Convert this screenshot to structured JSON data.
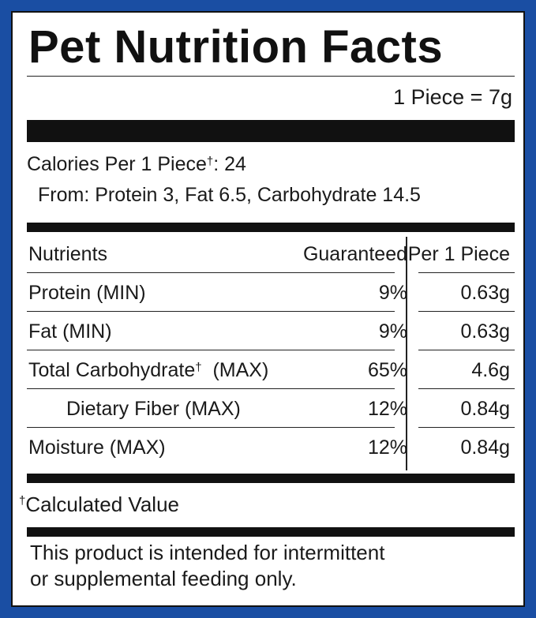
{
  "label": {
    "title": "Pet Nutrition Facts",
    "serving": "1 Piece = 7g",
    "calories_line": "Calories Per 1 Piece",
    "calories_dagger": "†",
    "calories_value": ": 24",
    "from_line": "From: Protein 3, Fat 6.5, Carbohydrate 14.5"
  },
  "table": {
    "headers": {
      "nutrients": "Nutrients",
      "guaranteed": "Guaranteed",
      "per_piece": "Per 1 Piece"
    },
    "rows": [
      {
        "name": "Protein (MIN)",
        "dagger": "",
        "suffix": "",
        "guaranteed": "9%",
        "per_piece": "0.63g"
      },
      {
        "name": "Fat (MIN)",
        "dagger": "",
        "suffix": "",
        "guaranteed": "9%",
        "per_piece": "0.63g"
      },
      {
        "name": "Total Carbohydrate",
        "dagger": "†",
        "suffix": "  (MAX)",
        "guaranteed": "65%",
        "per_piece": "4.6g"
      },
      {
        "name": "Dietary Fiber (MAX)",
        "dagger": "",
        "suffix": "",
        "guaranteed": "12%",
        "per_piece": "0.84g"
      },
      {
        "name": "Moisture (MAX)",
        "dagger": "",
        "suffix": "",
        "guaranteed": "12%",
        "per_piece": "0.84g"
      }
    ]
  },
  "footnote": {
    "dagger": "†",
    "text": "Calculated Value"
  },
  "disclaimer": {
    "line1": "This product is intended for intermittent",
    "line2": "or supplemental feeding only."
  },
  "colors": {
    "border": "#1a4ea3",
    "text": "#1a1a1a",
    "bars": "#111111"
  }
}
